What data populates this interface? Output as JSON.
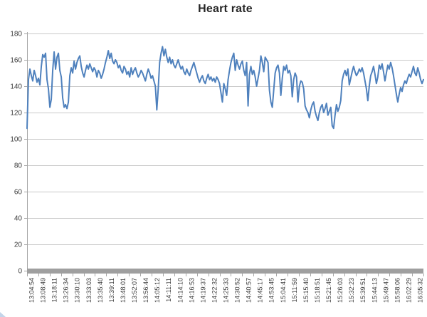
{
  "chart": {
    "title": "Heart rate"
  },
  "chart_data": {
    "type": "line",
    "title": "Heart rate",
    "xlabel": "",
    "ylabel": "",
    "ylim": [
      0,
      180
    ],
    "y_ticks": [
      0,
      20,
      40,
      60,
      80,
      100,
      120,
      140,
      160,
      180
    ],
    "grid": "horizontal",
    "legend_position": "none",
    "colors": {
      "line": "#4f81bd",
      "gridline": "#c9c9c9",
      "axis": "#a6a6a6",
      "bottom_bar": "#9f9f9f",
      "text": "#3a3a3a"
    },
    "x_tick_labels": [
      "13:04:54",
      "13:08:49",
      "13:18:11",
      "13:26:34",
      "13:30:10",
      "13:33:03",
      "13:35:40",
      "13:39:11",
      "13:48:01",
      "13:52:07",
      "13:56:44",
      "14:05:12",
      "14:11:11",
      "14:14:10",
      "14:16:53",
      "14:19:37",
      "14:22:32",
      "14:25:33",
      "14:30:52",
      "14:40:57",
      "14:45:17",
      "14:53:45",
      "15:04:41",
      "15:11:59",
      "15:15:40",
      "15:18:51",
      "15:21:45",
      "15:26:03",
      "15:32:23",
      "15:39:51",
      "15:44:13",
      "15:49:47",
      "15:58:06",
      "16:02:29",
      "16:05:32"
    ],
    "values": [
      108,
      145,
      153,
      148,
      144,
      152,
      148,
      143,
      146,
      141,
      155,
      164,
      162,
      165,
      145,
      138,
      124,
      130,
      152,
      166,
      153,
      162,
      165,
      152,
      147,
      131,
      124,
      126,
      123,
      128,
      148,
      154,
      150,
      159,
      153,
      158,
      161,
      163,
      155,
      150,
      147,
      152,
      156,
      153,
      157,
      154,
      151,
      154,
      152,
      147,
      152,
      150,
      146,
      149,
      153,
      158,
      162,
      167,
      161,
      165,
      159,
      157,
      160,
      158,
      154,
      156,
      152,
      150,
      155,
      153,
      149,
      151,
      147,
      154,
      149,
      152,
      154,
      150,
      147,
      149,
      152,
      150,
      147,
      144,
      149,
      153,
      150,
      146,
      148,
      144,
      140,
      122,
      138,
      158,
      165,
      170,
      163,
      168,
      162,
      158,
      162,
      157,
      160,
      156,
      154,
      157,
      160,
      156,
      153,
      155,
      151,
      149,
      153,
      150,
      148,
      152,
      155,
      158,
      154,
      150,
      146,
      143,
      146,
      148,
      144,
      142,
      146,
      149,
      145,
      147,
      144,
      146,
      143,
      147,
      145,
      142,
      135,
      128,
      142,
      138,
      133,
      145,
      152,
      158,
      162,
      165,
      152,
      160,
      156,
      153,
      157,
      159,
      152,
      148,
      158,
      125,
      149,
      155,
      149,
      152,
      147,
      140,
      146,
      152,
      163,
      158,
      151,
      162,
      160,
      158,
      137,
      128,
      124,
      137,
      150,
      154,
      156,
      150,
      133,
      146,
      155,
      152,
      156,
      150,
      152,
      148,
      132,
      145,
      150,
      147,
      128,
      140,
      144,
      143,
      138,
      125,
      122,
      120,
      116,
      122,
      126,
      128,
      121,
      117,
      114,
      120,
      124,
      126,
      120,
      123,
      127,
      118,
      121,
      124,
      110,
      108,
      118,
      126,
      121,
      124,
      129,
      144,
      149,
      152,
      148,
      153,
      141,
      146,
      151,
      155,
      151,
      148,
      150,
      153,
      151,
      154,
      150,
      144,
      138,
      129,
      140,
      148,
      151,
      155,
      149,
      142,
      147,
      156,
      153,
      157,
      151,
      144,
      150,
      156,
      153,
      158,
      154,
      148,
      141,
      134,
      128,
      134,
      139,
      136,
      141,
      144,
      142,
      146,
      149,
      147,
      151,
      155,
      150,
      148,
      154,
      150,
      145,
      142,
      145
    ]
  }
}
